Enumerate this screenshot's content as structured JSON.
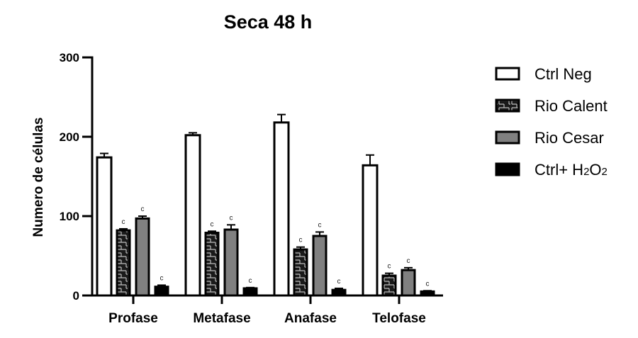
{
  "chart_data": {
    "type": "bar",
    "title": "Seca 48 h",
    "xlabel": "",
    "ylabel": "Numero de células",
    "ylim": [
      0,
      300
    ],
    "yticks": [
      0,
      100,
      200,
      300
    ],
    "grid": false,
    "legend_position": "right",
    "categories": [
      "Profase",
      "Metafase",
      "Anafase",
      "Telofase"
    ],
    "series": [
      {
        "name": "Ctrl Neg",
        "fill": "#ffffff",
        "pattern": "none",
        "values": [
          174,
          202,
          218,
          164
        ],
        "errors": [
          5,
          3,
          10,
          13
        ],
        "annotations": [
          "",
          "",
          "",
          ""
        ]
      },
      {
        "name": "Rio Calent",
        "fill": "#1a1a1a",
        "pattern": "brick",
        "values": [
          82,
          79,
          58,
          25
        ],
        "errors": [
          2,
          2,
          3,
          3
        ],
        "annotations": [
          "c",
          "c",
          "c",
          "c"
        ]
      },
      {
        "name": "Rio Cesar",
        "fill": "#808080",
        "pattern": "none",
        "values": [
          97,
          83,
          75,
          32
        ],
        "errors": [
          3,
          6,
          5,
          3
        ],
        "annotations": [
          "c",
          "c",
          "c",
          "c"
        ]
      },
      {
        "name": "Ctrl+ H2O2",
        "fill": "#000000",
        "pattern": "none",
        "values": [
          11,
          9,
          7,
          5
        ],
        "errors": [
          2,
          1,
          2,
          1
        ],
        "annotations": [
          "c",
          "c",
          "c",
          "c"
        ]
      }
    ]
  },
  "legend": {
    "items": [
      {
        "label": "Ctrl Neg"
      },
      {
        "label": "Rio Calent"
      },
      {
        "label": "Rio Cesar"
      },
      {
        "label_main": "Ctrl+ H",
        "sub1": "2",
        "mid": "O",
        "sub2": "2"
      }
    ]
  }
}
